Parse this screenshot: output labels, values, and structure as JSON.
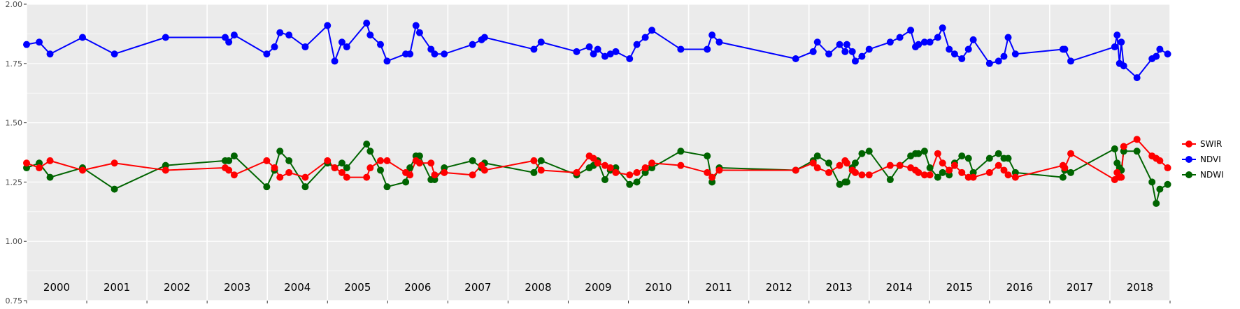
{
  "chart_data": {
    "type": "line",
    "title": "",
    "xlabel": "",
    "ylabel": "",
    "ylim": [
      0.75,
      2.0
    ],
    "y_ticks": [
      "0.75",
      "1.00",
      "1.25",
      "1.50",
      "1.75",
      "2.00"
    ],
    "y_tick_values": [
      0.75,
      1.0,
      1.25,
      1.5,
      1.75,
      2.0
    ],
    "xlim": [
      2000.0,
      2019.0
    ],
    "year_labels": [
      "2000",
      "2001",
      "2002",
      "2003",
      "2004",
      "2005",
      "2006",
      "2007",
      "2008",
      "2009",
      "2010",
      "2011",
      "2012",
      "2013",
      "2014",
      "2015",
      "2016",
      "2017",
      "2018"
    ],
    "grid": true,
    "background_color": "#EBEBEB",
    "grid_color": "#FFFFFF",
    "legend_position": "right",
    "series": [
      {
        "name": "SWIR",
        "color": "#FF0000",
        "x": [
          2000.0,
          2000.21,
          2000.39,
          2000.93,
          2001.46,
          2002.31,
          2003.3,
          2003.36,
          2003.45,
          2003.99,
          2004.12,
          2004.21,
          2004.36,
          2004.63,
          2005.0,
          2005.12,
          2005.24,
          2005.32,
          2005.65,
          2005.71,
          2005.88,
          2005.99,
          2006.3,
          2006.37,
          2006.47,
          2006.53,
          2006.72,
          2006.78,
          2006.94,
          2007.41,
          2007.56,
          2007.61,
          2008.43,
          2008.55,
          2009.14,
          2009.35,
          2009.42,
          2009.49,
          2009.61,
          2009.7,
          2009.79,
          2010.02,
          2010.14,
          2010.28,
          2010.39,
          2010.87,
          2011.31,
          2011.39,
          2011.51,
          2012.78,
          2013.07,
          2013.14,
          2013.33,
          2013.51,
          2013.6,
          2013.63,
          2013.72,
          2013.77,
          2013.88,
          2014.0,
          2014.35,
          2014.51,
          2014.69,
          2014.77,
          2014.82,
          2014.92,
          2015.01,
          2015.14,
          2015.22,
          2015.33,
          2015.42,
          2015.54,
          2015.65,
          2015.73,
          2016.0,
          2016.15,
          2016.24,
          2016.31,
          2016.43,
          2017.22,
          2017.25,
          2017.35,
          2018.08,
          2018.12,
          2018.16,
          2018.19,
          2018.23,
          2018.45,
          2018.7,
          2018.77,
          2018.83,
          2018.96
        ],
        "values": [
          1.33,
          1.31,
          1.34,
          1.3,
          1.33,
          1.3,
          1.31,
          1.3,
          1.28,
          1.34,
          1.31,
          1.27,
          1.29,
          1.27,
          1.34,
          1.31,
          1.29,
          1.27,
          1.27,
          1.31,
          1.34,
          1.34,
          1.29,
          1.28,
          1.34,
          1.33,
          1.33,
          1.28,
          1.29,
          1.28,
          1.32,
          1.3,
          1.34,
          1.3,
          1.29,
          1.36,
          1.35,
          1.33,
          1.32,
          1.31,
          1.29,
          1.28,
          1.29,
          1.31,
          1.33,
          1.32,
          1.29,
          1.27,
          1.3,
          1.3,
          1.33,
          1.31,
          1.29,
          1.32,
          1.34,
          1.33,
          1.3,
          1.29,
          1.28,
          1.28,
          1.32,
          1.32,
          1.31,
          1.3,
          1.29,
          1.28,
          1.28,
          1.37,
          1.33,
          1.3,
          1.32,
          1.29,
          1.27,
          1.27,
          1.29,
          1.32,
          1.3,
          1.28,
          1.27,
          1.32,
          1.31,
          1.37,
          1.26,
          1.29,
          1.27,
          1.27,
          1.4,
          1.43,
          1.36,
          1.35,
          1.34,
          1.31
        ]
      },
      {
        "name": "NDVI",
        "color": "#0000FF",
        "x": [
          2000.0,
          2000.21,
          2000.39,
          2000.93,
          2001.46,
          2002.31,
          2003.3,
          2003.36,
          2003.45,
          2003.99,
          2004.12,
          2004.21,
          2004.36,
          2004.63,
          2005.0,
          2005.12,
          2005.24,
          2005.32,
          2005.65,
          2005.71,
          2005.88,
          2005.99,
          2006.3,
          2006.37,
          2006.47,
          2006.53,
          2006.72,
          2006.78,
          2006.94,
          2007.41,
          2007.56,
          2007.61,
          2008.43,
          2008.55,
          2009.14,
          2009.35,
          2009.42,
          2009.49,
          2009.61,
          2009.7,
          2009.79,
          2010.02,
          2010.14,
          2010.28,
          2010.39,
          2010.87,
          2011.31,
          2011.39,
          2011.51,
          2012.78,
          2013.07,
          2013.14,
          2013.33,
          2013.51,
          2013.6,
          2013.63,
          2013.72,
          2013.77,
          2013.88,
          2014.0,
          2014.35,
          2014.51,
          2014.69,
          2014.77,
          2014.82,
          2014.92,
          2015.01,
          2015.14,
          2015.22,
          2015.33,
          2015.42,
          2015.54,
          2015.65,
          2015.73,
          2016.0,
          2016.15,
          2016.24,
          2016.31,
          2016.43,
          2017.22,
          2017.25,
          2017.35,
          2018.08,
          2018.12,
          2018.16,
          2018.19,
          2018.23,
          2018.45,
          2018.7,
          2018.77,
          2018.83,
          2018.96
        ],
        "values": [
          1.83,
          1.84,
          1.79,
          1.86,
          1.79,
          1.86,
          1.86,
          1.84,
          1.87,
          1.79,
          1.82,
          1.88,
          1.87,
          1.82,
          1.91,
          1.76,
          1.84,
          1.82,
          1.92,
          1.87,
          1.83,
          1.76,
          1.79,
          1.79,
          1.91,
          1.88,
          1.81,
          1.79,
          1.79,
          1.83,
          1.85,
          1.86,
          1.81,
          1.84,
          1.8,
          1.82,
          1.79,
          1.81,
          1.78,
          1.79,
          1.8,
          1.77,
          1.83,
          1.86,
          1.89,
          1.81,
          1.81,
          1.87,
          1.84,
          1.77,
          1.8,
          1.84,
          1.79,
          1.83,
          1.8,
          1.83,
          1.8,
          1.76,
          1.78,
          1.81,
          1.84,
          1.86,
          1.89,
          1.82,
          1.83,
          1.84,
          1.84,
          1.86,
          1.9,
          1.81,
          1.79,
          1.77,
          1.81,
          1.85,
          1.75,
          1.76,
          1.78,
          1.86,
          1.79,
          1.81,
          1.81,
          1.76,
          1.82,
          1.87,
          1.75,
          1.84,
          1.74,
          1.69,
          1.77,
          1.78,
          1.81,
          1.79
        ]
      },
      {
        "name": "NDWI",
        "color": "#006400",
        "x": [
          2000.0,
          2000.21,
          2000.39,
          2000.93,
          2001.46,
          2002.31,
          2003.3,
          2003.36,
          2003.45,
          2003.99,
          2004.12,
          2004.21,
          2004.36,
          2004.63,
          2005.0,
          2005.12,
          2005.24,
          2005.32,
          2005.65,
          2005.71,
          2005.88,
          2005.99,
          2006.3,
          2006.37,
          2006.47,
          2006.53,
          2006.72,
          2006.78,
          2006.94,
          2007.41,
          2007.56,
          2007.61,
          2008.43,
          2008.55,
          2009.14,
          2009.35,
          2009.42,
          2009.49,
          2009.61,
          2009.7,
          2009.79,
          2010.02,
          2010.14,
          2010.28,
          2010.39,
          2010.87,
          2011.31,
          2011.39,
          2011.51,
          2012.78,
          2013.07,
          2013.14,
          2013.33,
          2013.51,
          2013.6,
          2013.63,
          2013.72,
          2013.77,
          2013.88,
          2014.0,
          2014.35,
          2014.51,
          2014.69,
          2014.77,
          2014.82,
          2014.92,
          2015.01,
          2015.14,
          2015.22,
          2015.33,
          2015.42,
          2015.54,
          2015.65,
          2015.73,
          2016.0,
          2016.15,
          2016.24,
          2016.31,
          2016.43,
          2017.22,
          2017.25,
          2017.35,
          2018.08,
          2018.12,
          2018.16,
          2018.19,
          2018.23,
          2018.45,
          2018.7,
          2018.77,
          2018.83,
          2018.96
        ],
        "values": [
          1.31,
          1.33,
          1.27,
          1.31,
          1.22,
          1.32,
          1.34,
          1.34,
          1.36,
          1.23,
          1.3,
          1.38,
          1.34,
          1.23,
          1.33,
          1.31,
          1.33,
          1.31,
          1.41,
          1.38,
          1.3,
          1.23,
          1.25,
          1.31,
          1.36,
          1.36,
          1.26,
          1.26,
          1.31,
          1.34,
          1.31,
          1.33,
          1.29,
          1.34,
          1.28,
          1.31,
          1.32,
          1.34,
          1.26,
          1.3,
          1.31,
          1.24,
          1.25,
          1.29,
          1.31,
          1.38,
          1.36,
          1.25,
          1.31,
          1.3,
          1.34,
          1.36,
          1.33,
          1.24,
          1.25,
          1.25,
          1.31,
          1.33,
          1.37,
          1.38,
          1.26,
          1.32,
          1.36,
          1.37,
          1.37,
          1.38,
          1.31,
          1.27,
          1.29,
          1.28,
          1.33,
          1.36,
          1.35,
          1.29,
          1.35,
          1.37,
          1.35,
          1.35,
          1.29,
          1.27,
          1.3,
          1.29,
          1.39,
          1.33,
          1.31,
          1.3,
          1.38,
          1.38,
          1.25,
          1.16,
          1.22,
          1.24
        ]
      }
    ]
  }
}
